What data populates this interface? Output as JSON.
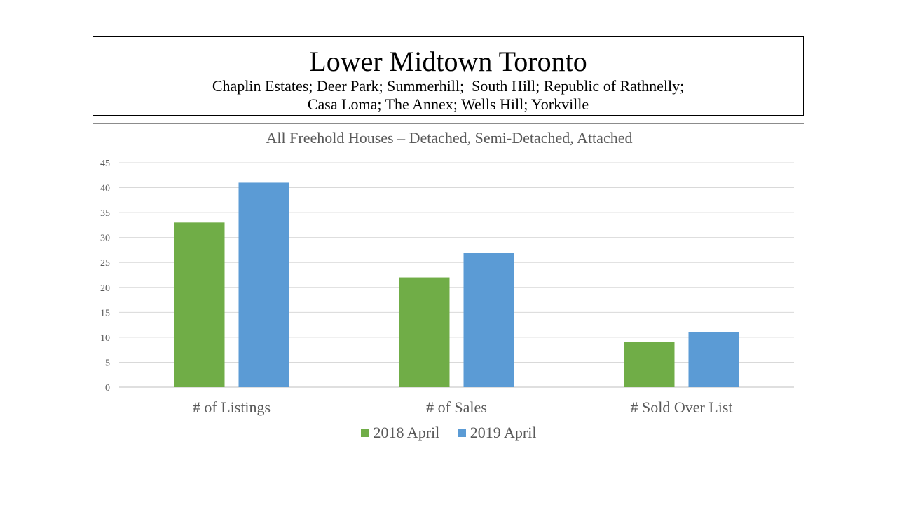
{
  "header": {
    "title": "Lower Midtown Toronto",
    "subtitle_line1": "Chaplin Estates; Deer Park; Summerhill;  South Hill; Republic of Rathnelly;",
    "subtitle_line2": "Casa Loma; The Annex; Wells Hill; Yorkville"
  },
  "chart_data": {
    "type": "bar",
    "title": "All Freehold Houses – Detached, Semi-Detached, Attached",
    "categories": [
      "# of Listings",
      "# of Sales",
      "# Sold Over List"
    ],
    "series": [
      {
        "name": "2018 April",
        "values": [
          33,
          22,
          9
        ],
        "color": "#70ad47"
      },
      {
        "name": "2019 April",
        "values": [
          41,
          27,
          11
        ],
        "color": "#5b9bd5"
      }
    ],
    "ylim": [
      0,
      45
    ],
    "yticks": [
      "0",
      "5",
      "10",
      "15",
      "20",
      "25",
      "30",
      "35",
      "40",
      "45"
    ],
    "grid": true,
    "legend_position": "bottom"
  }
}
